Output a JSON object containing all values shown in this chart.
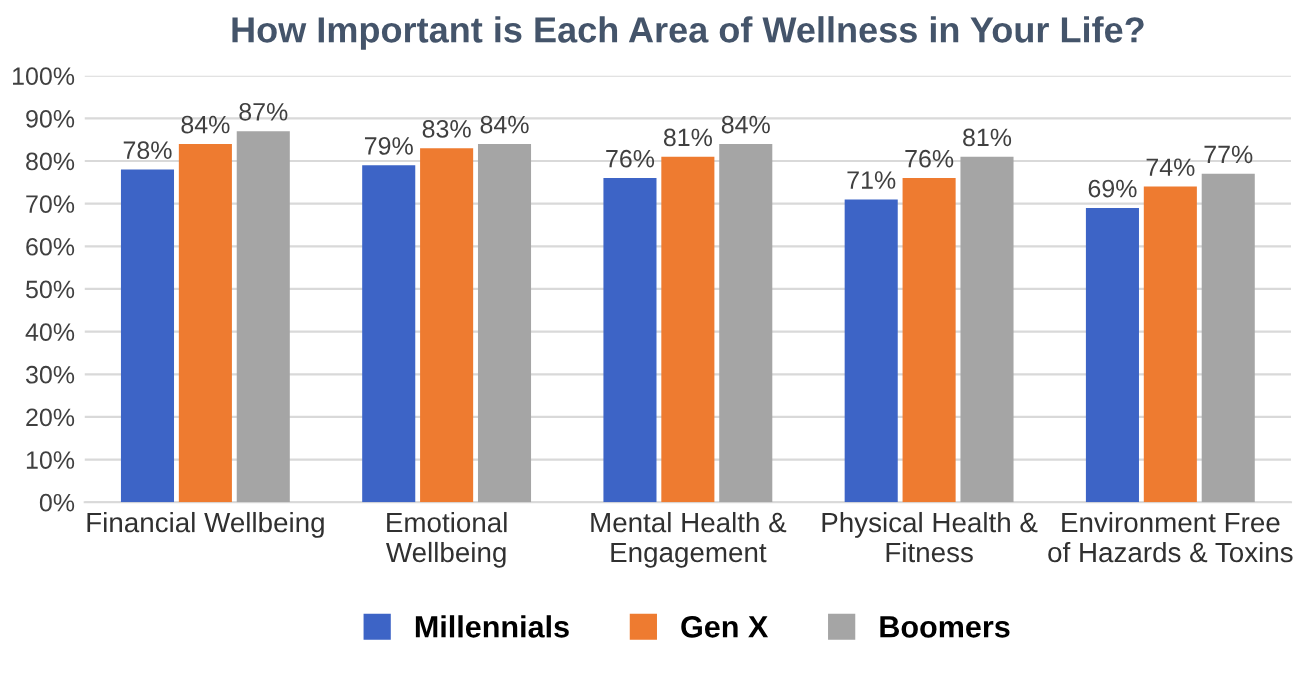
{
  "chart_data": {
    "type": "bar",
    "title": "How Important is Each Area of Wellness in Your Life?",
    "categories": [
      "Financial Wellbeing",
      "Emotional\nWellbeing",
      "Mental Health &\nEngagement",
      "Physical Health &\nFitness",
      "Environment Free\nof Hazards & Toxins"
    ],
    "series": [
      {
        "name": "Millennials",
        "color": "#3d64c6",
        "values": [
          78,
          79,
          76,
          71,
          69
        ],
        "value_labels": [
          "78%",
          "79%",
          "76%",
          "71%",
          "69%"
        ]
      },
      {
        "name": "Gen X",
        "color": "#ee7b30",
        "values": [
          84,
          83,
          81,
          76,
          74
        ],
        "value_labels": [
          "84%",
          "83%",
          "81%",
          "76%",
          "74%"
        ]
      },
      {
        "name": "Boomers",
        "color": "#a5a5a5",
        "values": [
          87,
          84,
          84,
          81,
          77
        ],
        "value_labels": [
          "87%",
          "84%",
          "84%",
          "81%",
          "77%"
        ]
      }
    ],
    "ylim": [
      0,
      100
    ],
    "yticks": [
      {
        "value": 0,
        "label": "0%"
      },
      {
        "value": 10,
        "label": "10%"
      },
      {
        "value": 20,
        "label": "20%"
      },
      {
        "value": 30,
        "label": "30%"
      },
      {
        "value": 40,
        "label": "40%"
      },
      {
        "value": 50,
        "label": "50%"
      },
      {
        "value": 60,
        "label": "60%"
      },
      {
        "value": 70,
        "label": "70%"
      },
      {
        "value": 80,
        "label": "80%"
      },
      {
        "value": 90,
        "label": "90%"
      },
      {
        "value": 100,
        "label": "100%"
      }
    ],
    "grid": "y",
    "legend": "bottom"
  }
}
